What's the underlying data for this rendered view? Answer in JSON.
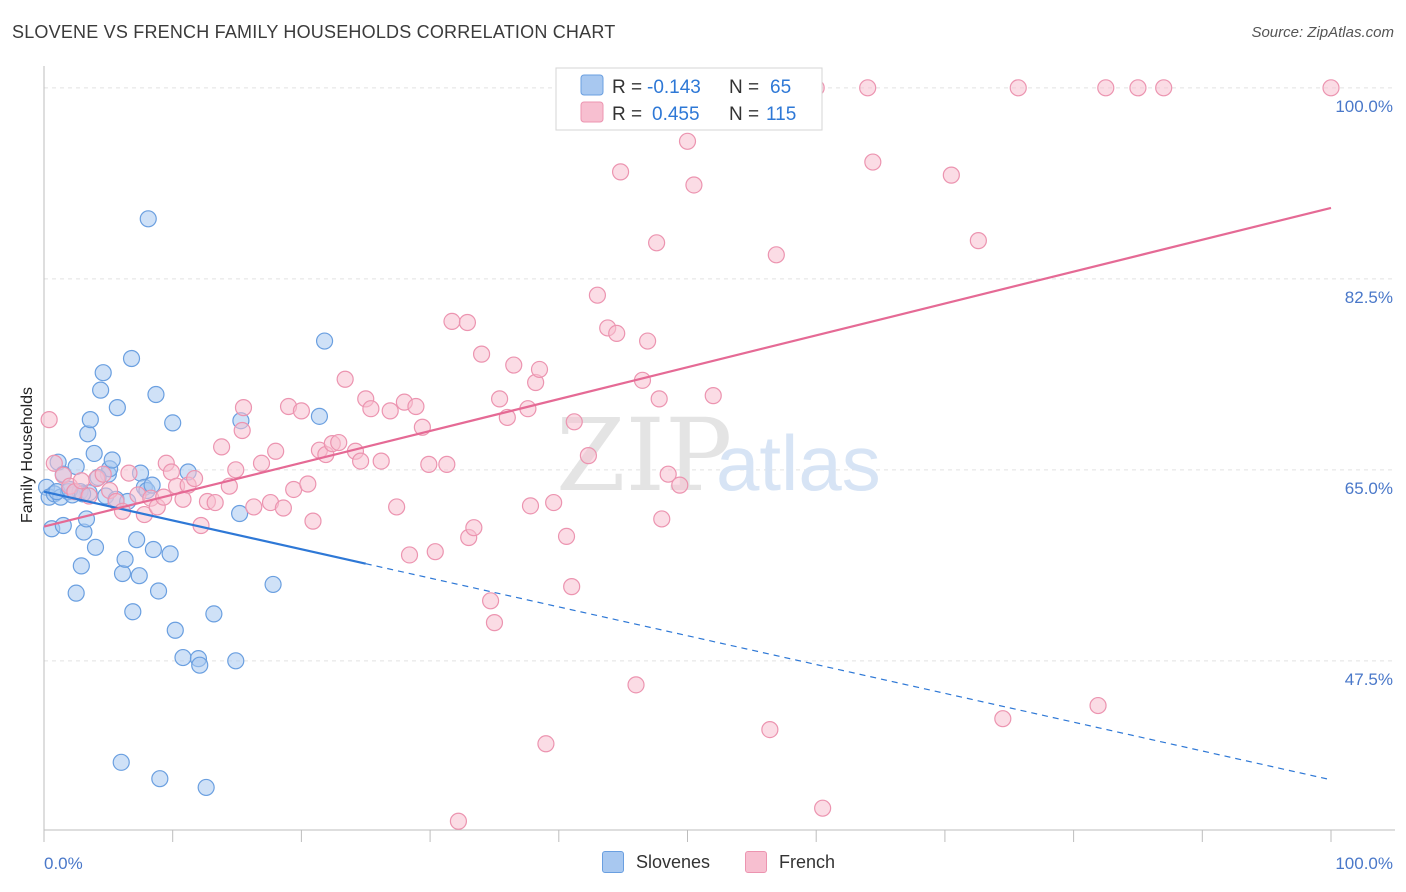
{
  "title": "SLOVENE VS FRENCH FAMILY HOUSEHOLDS CORRELATION CHART",
  "source": "Source: ZipAtlas.com",
  "colors": {
    "slovenes_fill": "#a8c8f0",
    "slovenes_stroke": "#6a9fe0",
    "slovenes_line": "#2e78d6",
    "french_fill": "#f7bfd0",
    "french_stroke": "#ec94b0",
    "french_line": "#e56a95",
    "tick_text": "#4a78c9",
    "grid": "#e2e2e2"
  },
  "legend": {
    "rows": [
      {
        "r_label": "R =",
        "r_value": "-0.143",
        "n_label": "N =",
        "n_value": "65"
      },
      {
        "r_label": "R =",
        "r_value": "0.455",
        "n_label": "N =",
        "n_value": "115"
      }
    ]
  },
  "bottom_legend": {
    "slovenes": "Slovenes",
    "french": "French"
  },
  "watermark": {
    "zip": "ZIP",
    "atlas": "atlas"
  },
  "chart_data": {
    "type": "scatter",
    "xlabel": "",
    "ylabel": "Family Households",
    "xlim": [
      0,
      100
    ],
    "ylim": [
      32,
      102
    ],
    "x_tick_labels": [
      "0.0%",
      "100.0%"
    ],
    "y_ticks": [
      47.5,
      65.0,
      82.5,
      100.0
    ],
    "y_tick_labels": [
      "47.5%",
      "65.0%",
      "82.5%",
      "100.0%"
    ],
    "series": [
      {
        "name": "Slovenes",
        "r": -0.143,
        "n": 65,
        "trend": {
          "x0": 0,
          "y0": 63.0,
          "x1": 100,
          "y1": 36.6,
          "solid_until": 25
        },
        "points": [
          [
            0.2,
            63.4
          ],
          [
            0.4,
            62.5
          ],
          [
            0.6,
            59.6
          ],
          [
            0.8,
            62.8
          ],
          [
            1.1,
            65.7
          ],
          [
            1.3,
            62.5
          ],
          [
            1.5,
            64.6
          ],
          [
            1.5,
            59.9
          ],
          [
            1.9,
            63.0
          ],
          [
            2.2,
            62.7
          ],
          [
            2.5,
            53.7
          ],
          [
            2.5,
            65.3
          ],
          [
            2.8,
            63.0
          ],
          [
            2.9,
            56.2
          ],
          [
            3.1,
            59.3
          ],
          [
            3.3,
            60.5
          ],
          [
            3.4,
            68.3
          ],
          [
            3.5,
            62.9
          ],
          [
            3.6,
            69.6
          ],
          [
            3.9,
            66.5
          ],
          [
            4.0,
            57.9
          ],
          [
            4.4,
            72.3
          ],
          [
            4.6,
            73.9
          ],
          [
            4.8,
            62.6
          ],
          [
            5.0,
            64.6
          ],
          [
            5.1,
            65.1
          ],
          [
            5.3,
            65.9
          ],
          [
            5.6,
            62.3
          ],
          [
            5.7,
            70.7
          ],
          [
            6.1,
            55.5
          ],
          [
            6.3,
            56.8
          ],
          [
            6.5,
            62.1
          ],
          [
            6.8,
            75.2
          ],
          [
            6.9,
            52.0
          ],
          [
            7.2,
            58.6
          ],
          [
            7.4,
            55.3
          ],
          [
            7.5,
            64.7
          ],
          [
            7.8,
            63.4
          ],
          [
            8.0,
            63.1
          ],
          [
            8.1,
            88.0
          ],
          [
            8.4,
            63.6
          ],
          [
            8.5,
            57.7
          ],
          [
            8.7,
            71.9
          ],
          [
            8.9,
            53.9
          ],
          [
            9.0,
            36.7
          ],
          [
            9.8,
            57.3
          ],
          [
            10.0,
            69.3
          ],
          [
            10.2,
            50.3
          ],
          [
            10.8,
            47.8
          ],
          [
            11.2,
            64.8
          ],
          [
            12.0,
            47.7
          ],
          [
            12.1,
            47.1
          ],
          [
            12.6,
            35.9
          ],
          [
            13.2,
            51.8
          ],
          [
            14.9,
            47.5
          ],
          [
            15.2,
            61.0
          ],
          [
            15.3,
            69.5
          ],
          [
            17.8,
            54.5
          ],
          [
            21.4,
            69.9
          ],
          [
            21.8,
            76.8
          ],
          [
            6.0,
            38.2
          ],
          [
            1.0,
            63.0
          ],
          [
            2.0,
            63.2
          ],
          [
            3.0,
            62.8
          ],
          [
            4.2,
            64.3
          ]
        ]
      },
      {
        "name": "French",
        "r": 0.455,
        "n": 115,
        "trend": {
          "x0": 0,
          "y0": 59.8,
          "x1": 100,
          "y1": 89.0
        },
        "points": [
          [
            0.4,
            69.6
          ],
          [
            0.8,
            65.6
          ],
          [
            1.5,
            64.5
          ],
          [
            2.0,
            63.5
          ],
          [
            2.4,
            63.0
          ],
          [
            2.9,
            64.0
          ],
          [
            3.5,
            62.6
          ],
          [
            4.1,
            64.2
          ],
          [
            4.6,
            64.6
          ],
          [
            5.1,
            63.1
          ],
          [
            5.6,
            62.1
          ],
          [
            6.1,
            61.2
          ],
          [
            6.6,
            64.7
          ],
          [
            7.3,
            62.7
          ],
          [
            7.8,
            60.9
          ],
          [
            8.3,
            62.4
          ],
          [
            8.8,
            61.6
          ],
          [
            9.3,
            62.5
          ],
          [
            9.5,
            65.6
          ],
          [
            9.9,
            64.8
          ],
          [
            10.3,
            63.5
          ],
          [
            10.8,
            62.3
          ],
          [
            11.2,
            63.6
          ],
          [
            11.7,
            64.2
          ],
          [
            12.2,
            59.9
          ],
          [
            12.7,
            62.1
          ],
          [
            13.3,
            62.0
          ],
          [
            13.8,
            67.1
          ],
          [
            14.4,
            63.5
          ],
          [
            14.9,
            65.0
          ],
          [
            15.5,
            70.7
          ],
          [
            15.4,
            68.6
          ],
          [
            16.3,
            61.6
          ],
          [
            16.9,
            65.6
          ],
          [
            17.6,
            62.0
          ],
          [
            18.0,
            66.7
          ],
          [
            18.6,
            61.5
          ],
          [
            19.0,
            70.8
          ],
          [
            19.4,
            63.2
          ],
          [
            20.0,
            70.4
          ],
          [
            20.5,
            63.7
          ],
          [
            20.9,
            60.3
          ],
          [
            21.4,
            66.8
          ],
          [
            21.9,
            66.4
          ],
          [
            22.4,
            67.4
          ],
          [
            22.9,
            67.5
          ],
          [
            23.4,
            73.3
          ],
          [
            24.2,
            66.7
          ],
          [
            24.6,
            65.8
          ],
          [
            25.0,
            71.5
          ],
          [
            25.4,
            70.6
          ],
          [
            26.2,
            65.8
          ],
          [
            26.9,
            70.4
          ],
          [
            27.4,
            61.6
          ],
          [
            28.0,
            71.2
          ],
          [
            28.4,
            57.2
          ],
          [
            28.9,
            70.8
          ],
          [
            29.4,
            68.9
          ],
          [
            29.9,
            65.5
          ],
          [
            30.4,
            57.5
          ],
          [
            31.3,
            65.5
          ],
          [
            31.7,
            78.6
          ],
          [
            32.9,
            78.5
          ],
          [
            32.2,
            32.8
          ],
          [
            33.0,
            58.8
          ],
          [
            33.4,
            59.7
          ],
          [
            34.0,
            75.6
          ],
          [
            34.7,
            53.0
          ],
          [
            35.0,
            51.0
          ],
          [
            35.4,
            71.5
          ],
          [
            36.0,
            69.8
          ],
          [
            36.5,
            74.6
          ],
          [
            37.6,
            70.6
          ],
          [
            37.8,
            61.7
          ],
          [
            38.2,
            73.0
          ],
          [
            38.5,
            74.2
          ],
          [
            39.0,
            39.9
          ],
          [
            39.6,
            62.0
          ],
          [
            40.6,
            58.9
          ],
          [
            41.0,
            54.3
          ],
          [
            41.2,
            69.4
          ],
          [
            42.3,
            66.3
          ],
          [
            43.0,
            81.0
          ],
          [
            43.8,
            78.0
          ],
          [
            44.5,
            77.5
          ],
          [
            44.8,
            92.3
          ],
          [
            45.3,
            100.0
          ],
          [
            46.0,
            45.3
          ],
          [
            46.5,
            73.2
          ],
          [
            46.9,
            76.8
          ],
          [
            47.6,
            85.8
          ],
          [
            47.8,
            71.5
          ],
          [
            48.0,
            60.5
          ],
          [
            48.5,
            64.6
          ],
          [
            49.4,
            63.6
          ],
          [
            50.0,
            95.1
          ],
          [
            50.5,
            91.1
          ],
          [
            51.0,
            99.5
          ],
          [
            52.0,
            71.8
          ],
          [
            52.5,
            100.0
          ],
          [
            56.4,
            41.2
          ],
          [
            56.9,
            84.7
          ],
          [
            60.0,
            100.0
          ],
          [
            60.5,
            34.0
          ],
          [
            64.0,
            100.0
          ],
          [
            64.4,
            93.2
          ],
          [
            70.5,
            92.0
          ],
          [
            72.6,
            86.0
          ],
          [
            74.5,
            42.2
          ],
          [
            75.7,
            100.0
          ],
          [
            81.9,
            43.4
          ],
          [
            82.5,
            100.0
          ],
          [
            85.0,
            100.0
          ],
          [
            87.0,
            100.0
          ],
          [
            100.0,
            100.0
          ]
        ]
      }
    ]
  }
}
